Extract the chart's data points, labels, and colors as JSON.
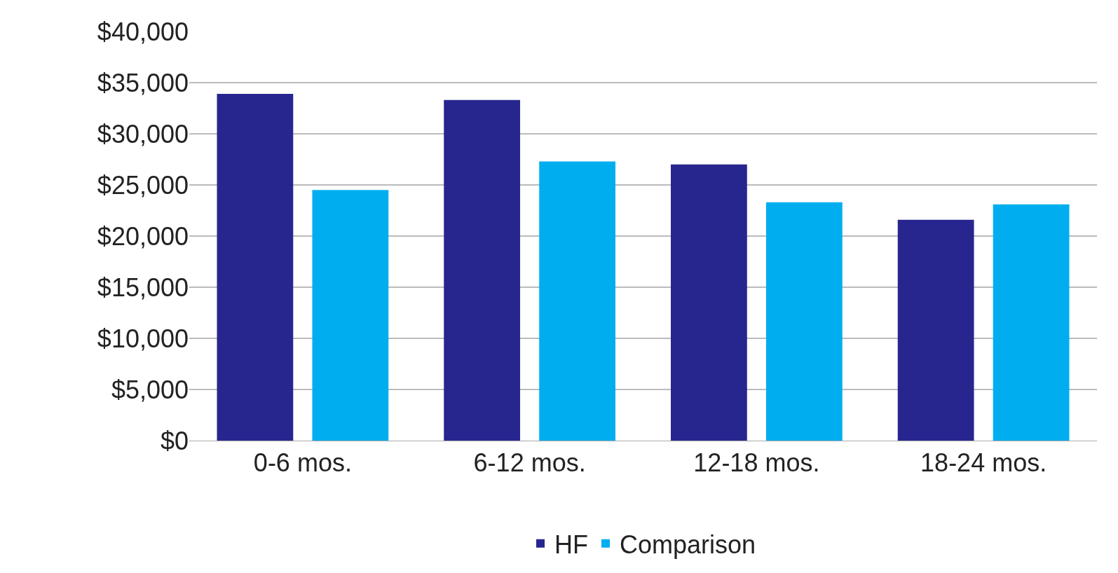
{
  "chart_data": {
    "type": "bar",
    "categories": [
      "0-6 mos.",
      "6-12 mos.",
      "12-18 mos.",
      "18-24 mos."
    ],
    "series": [
      {
        "name": "HF",
        "color": "#27268f",
        "values": [
          33900,
          33300,
          27000,
          21600
        ]
      },
      {
        "name": "Comparison",
        "color": "#00aeef",
        "values": [
          24500,
          27300,
          23300,
          23100
        ]
      }
    ],
    "ylim": [
      0,
      40000
    ],
    "yticks": [
      {
        "value": 0,
        "label": "$0"
      },
      {
        "value": 5000,
        "label": "$5,000"
      },
      {
        "value": 10000,
        "label": "$10,000"
      },
      {
        "value": 15000,
        "label": "$15,000"
      },
      {
        "value": 20000,
        "label": "$20,000"
      },
      {
        "value": 25000,
        "label": "$25,000"
      },
      {
        "value": 30000,
        "label": "$30,000"
      },
      {
        "value": 35000,
        "label": "$35,000"
      },
      {
        "value": 40000,
        "label": "$40,000"
      }
    ],
    "grid": "y",
    "legend": "bottom"
  }
}
